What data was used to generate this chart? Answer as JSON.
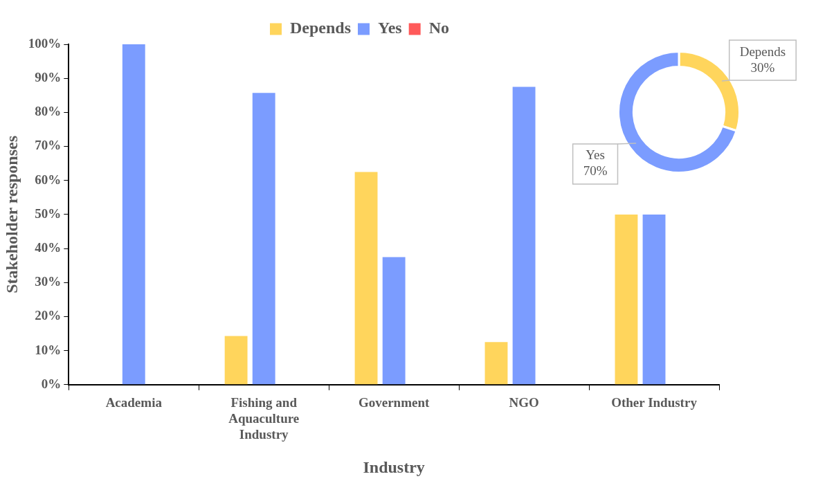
{
  "chart_data": [
    {
      "type": "bar",
      "xlabel": "Industry",
      "ylabel": "Stakeholder responses",
      "legend": "top",
      "categories": [
        "Academia",
        "Fishing and Aquaculture Industry",
        "Government",
        "NGO",
        "Other Industry"
      ],
      "series": [
        {
          "name": "Depends",
          "color": "#ffd55c",
          "values": [
            0,
            14.3,
            62.5,
            12.5,
            50
          ]
        },
        {
          "name": "Yes",
          "color": "#7b9cff",
          "values": [
            100,
            85.7,
            37.5,
            87.5,
            50
          ]
        },
        {
          "name": "No",
          "color": "#ff5a5a",
          "values": [
            0,
            0,
            0,
            0,
            0
          ]
        }
      ],
      "ylim": [
        0,
        100
      ],
      "yticks": [
        {
          "value": 0,
          "label": "0%"
        },
        {
          "value": 10,
          "label": "10%"
        },
        {
          "value": 20,
          "label": "20%"
        },
        {
          "value": 30,
          "label": "30%"
        },
        {
          "value": 40,
          "label": "40%"
        },
        {
          "value": 50,
          "label": "50%"
        },
        {
          "value": 60,
          "label": "60%"
        },
        {
          "value": 70,
          "label": "70%"
        },
        {
          "value": 80,
          "label": "80%"
        },
        {
          "value": 90,
          "label": "90%"
        },
        {
          "value": 100,
          "label": "100%"
        }
      ]
    },
    {
      "type": "donut",
      "categories": [
        "Depends",
        "Yes"
      ],
      "values": [
        30,
        70
      ],
      "colors": [
        "#ffd55c",
        "#7b9cff"
      ],
      "value_labels": [
        "30%",
        "70%"
      ]
    }
  ]
}
